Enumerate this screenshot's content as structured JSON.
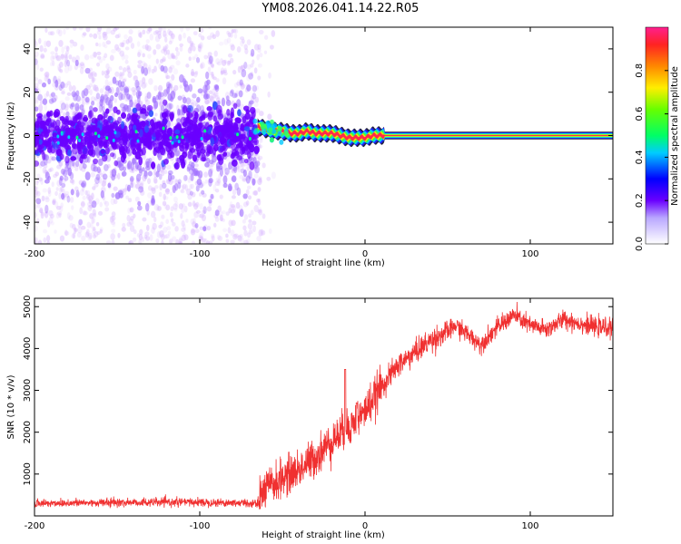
{
  "title": "YM08.2026.041.14.22.R05",
  "colors": {
    "snr_line": "#f03030",
    "band_hot": "#ff1f4a",
    "band_cold": "#6a00ff",
    "scatter_light": "#d9b8ff",
    "scatter_dark": "#6a00ff"
  },
  "chart_data": [
    {
      "type": "heatmap",
      "name": "spectrogram",
      "xlabel": "Height of straight line (km)",
      "ylabel": "Frequency (Hz)",
      "xlim": [
        -200,
        150
      ],
      "ylim": [
        -50,
        50
      ],
      "xticks": [
        "-200",
        "-100",
        "0",
        "100"
      ],
      "xtick_values": [
        -200,
        -100,
        0,
        100
      ],
      "yticks": [
        "-40",
        "-20",
        "0",
        "20",
        "40"
      ],
      "ytick_values": [
        -40,
        -20,
        0,
        20,
        40
      ],
      "colorbar": {
        "label": "Normalized spectral amplitude",
        "range": [
          0,
          1
        ],
        "ticks": [
          "0.0",
          "0.2",
          "0.4",
          "0.6",
          "0.8"
        ],
        "tick_values": [
          0.0,
          0.2,
          0.4,
          0.6,
          0.8
        ]
      },
      "noise_region_x": [
        -200,
        -65
      ],
      "signal_track": {
        "x": [
          -65,
          -60,
          -55,
          -50,
          -45,
          -40,
          -35,
          -30,
          -25,
          -20,
          -15,
          -10,
          -5,
          0,
          5,
          10,
          150
        ],
        "freq": [
          4,
          3,
          2,
          2,
          1,
          1,
          2,
          1,
          1,
          1,
          0,
          -1,
          -1,
          -1,
          0,
          0,
          0
        ]
      }
    },
    {
      "type": "line",
      "name": "snr",
      "xlabel": "Height of straight line (km)",
      "ylabel": "SNR (10 * v/v)",
      "xlim": [
        -200,
        150
      ],
      "ylim": [
        0,
        5200
      ],
      "xticks": [
        "-200",
        "-100",
        "0",
        "100"
      ],
      "xtick_values": [
        -200,
        -100,
        0,
        100
      ],
      "yticks": [
        "1000",
        "2000",
        "3000",
        "4000",
        "5000"
      ],
      "ytick_values": [
        1000,
        2000,
        3000,
        4000,
        5000
      ],
      "trend": {
        "x": [
          -200,
          -150,
          -100,
          -65,
          -60,
          -50,
          -40,
          -30,
          -20,
          -10,
          0,
          10,
          20,
          30,
          40,
          50,
          55,
          60,
          70,
          80,
          90,
          100,
          110,
          120,
          130,
          140,
          150
        ],
        "y": [
          300,
          320,
          330,
          300,
          650,
          900,
          1100,
          1400,
          1800,
          2100,
          2500,
          3100,
          3600,
          3900,
          4200,
          4400,
          4550,
          4400,
          4100,
          4500,
          4800,
          4550,
          4450,
          4700,
          4600,
          4500,
          4500
        ]
      },
      "spikes": [
        {
          "x": -12,
          "y": 3500
        },
        {
          "x": -5,
          "y": 2700
        }
      ]
    }
  ]
}
